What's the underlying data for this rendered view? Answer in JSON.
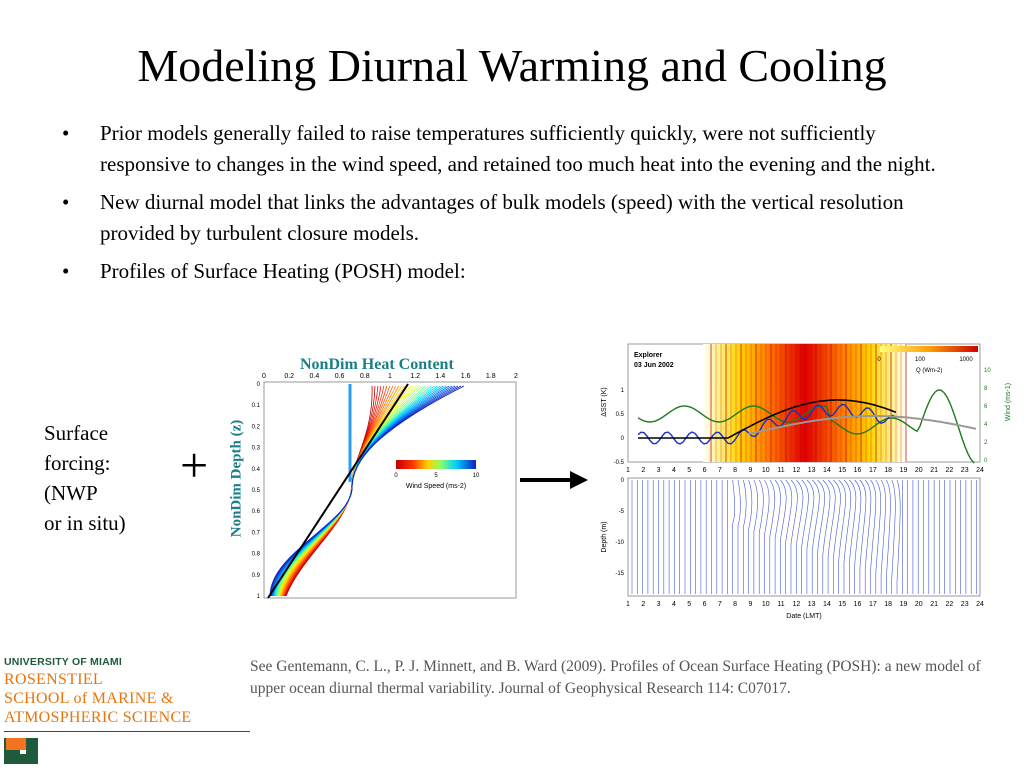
{
  "title": "Modeling Diurnal Warming and Cooling",
  "bullets": [
    "Prior models generally failed to raise temperatures sufficiently quickly, were not sufficiently responsive to changes in the wind speed, and retained too much heat into the evening and the night.",
    "New diurnal model that links the advantages of bulk models (speed) with the vertical resolution provided by turbulent closure models.",
    "Profiles of Surface Heating (POSH) model:"
  ],
  "diagram": {
    "surface_forcing": "Surface\nforcing:\n(NWP\nor in situ)",
    "plus": "+",
    "left_figure": {
      "title": "NonDim Heat Content",
      "ylabel": "NonDim Depth (z)",
      "x_ticks": [
        "0",
        "0.2",
        "0.4",
        "0.6",
        "0.8",
        "1",
        "1.2",
        "1.4",
        "1.6",
        "1.8",
        "2"
      ],
      "y_ticks": [
        "0",
        "0.1",
        "0.2",
        "0.3",
        "0.4",
        "0.5",
        "0.6",
        "0.7",
        "0.8",
        "0.9",
        "1"
      ],
      "colorbar_ticks": [
        "0",
        "5",
        "10"
      ],
      "colorbar_label": "Wind Speed (ms-2)"
    },
    "right_figure": {
      "header_line1": "Explorer",
      "header_line2": "03 Jun 2002",
      "colorbar_ticks": [
        "0",
        "100",
        "1000"
      ],
      "q_label": "Q (Wm-2)",
      "left_ylabel": "ΔSST (K)",
      "left_yticks": [
        "1",
        "0.5",
        "0",
        "-0.5"
      ],
      "right_ylabel": "Wind (ms-1)",
      "right_yticks": [
        "10",
        "8",
        "6",
        "4",
        "2",
        "0"
      ],
      "hours": [
        "1",
        "2",
        "3",
        "4",
        "5",
        "6",
        "7",
        "8",
        "9",
        "10",
        "11",
        "12",
        "13",
        "14",
        "15",
        "16",
        "17",
        "18",
        "19",
        "20",
        "21",
        "22",
        "23",
        "24"
      ],
      "depth_ylabel": "Depth (m)",
      "depth_ticks": [
        "0",
        "-5",
        "-10",
        "-15"
      ],
      "xlabel": "Date (LMT)"
    }
  },
  "citation": "See Gentemann, C. L., P. J. Minnett, and B. Ward (2009). Profiles of Ocean Surface Heating (POSH): a new model of upper ocean diurnal thermal variability. Journal of  Geophysical Research 114: C07017.",
  "logo": {
    "university": "UNIVERSITY OF MIAMI",
    "line1": "ROSENSTIEL",
    "line2": "SCHOOL of MARINE &",
    "line3": "ATMOSPHERIC SCIENCE"
  },
  "colors": {
    "teal": "#1a7f8a",
    "orange": "#e8750e",
    "green": "#1e5b3a"
  }
}
